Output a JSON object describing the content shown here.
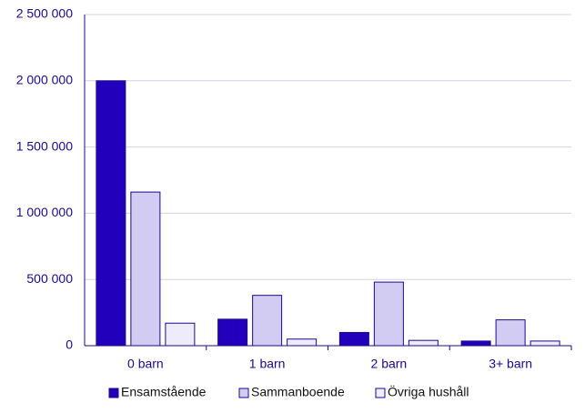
{
  "chart_data": {
    "type": "bar",
    "categories": [
      "0 barn",
      "1 barn",
      "2 barn",
      "3+ barn"
    ],
    "series": [
      {
        "name": "Ensamstående",
        "color": "#2200bb",
        "values": [
          2000000,
          200000,
          100000,
          35000
        ]
      },
      {
        "name": "Sammanboende",
        "color": "#d2ccf2",
        "values": [
          1160000,
          380000,
          480000,
          195000
        ]
      },
      {
        "name": "Övriga hushåll",
        "color": "#eeebfb",
        "values": [
          170000,
          50000,
          40000,
          35000
        ]
      }
    ],
    "ylim": [
      0,
      2500000
    ],
    "yticks": [
      0,
      {
        "value": 500000,
        "label": "500 000"
      },
      {
        "value": 1000000,
        "label": "1 000 000"
      },
      {
        "value": 1500000,
        "label": "1 500 000"
      },
      {
        "value": 2000000,
        "label": "2 000 000"
      },
      {
        "value": 2500000,
        "label": "2 500 000"
      }
    ],
    "grid": true,
    "legend": "bottom"
  }
}
